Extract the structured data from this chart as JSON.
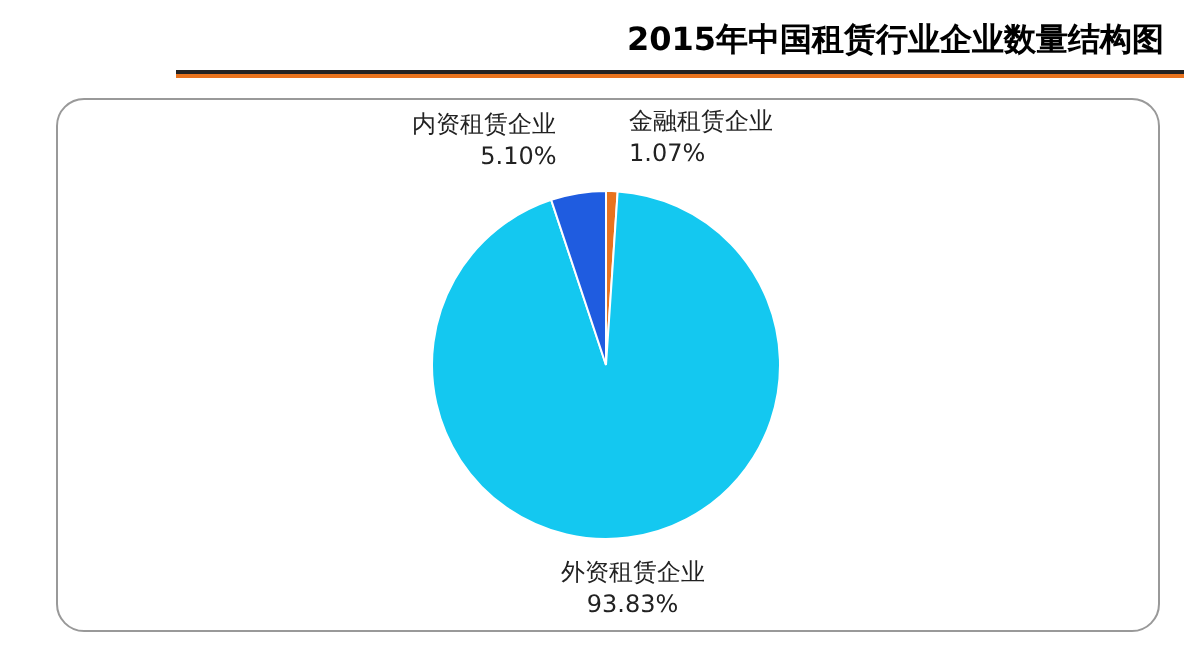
{
  "chart_data": {
    "type": "pie",
    "title": "2015年中国租赁行业企业数量结构图",
    "categories": [
      "金融租赁企业",
      "外资租赁企业",
      "内资租赁企业"
    ],
    "values": [
      1.07,
      93.83,
      5.1
    ],
    "colors": [
      "#e8731e",
      "#14c8f0",
      "#1f5ce0"
    ],
    "value_labels": [
      "1.07%",
      "93.83%",
      "5.10%"
    ],
    "legend": false
  }
}
